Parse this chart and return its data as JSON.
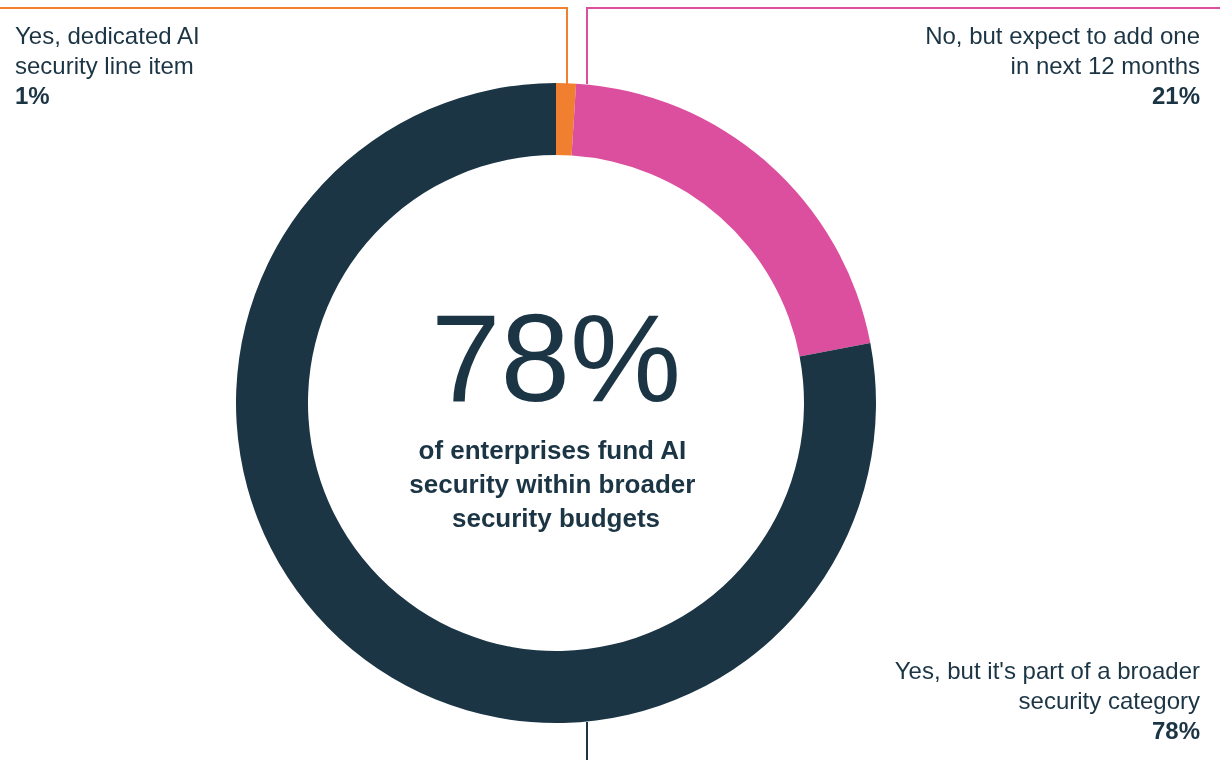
{
  "chart_data": {
    "type": "donut",
    "categories": [
      "Yes, dedicated AI security line item",
      "No, but expect to add one in next 12 months",
      "Yes, but it's part of a broader security category"
    ],
    "values": [
      1,
      21,
      78
    ],
    "colors": [
      "#f08030",
      "#dc4f9e",
      "#1c3545"
    ],
    "annotations": [
      "78%",
      "of enterprises fund AI security within broader security budgets"
    ],
    "value_labels": [
      "1%",
      "21%",
      "78%"
    ],
    "legend": false
  }
}
